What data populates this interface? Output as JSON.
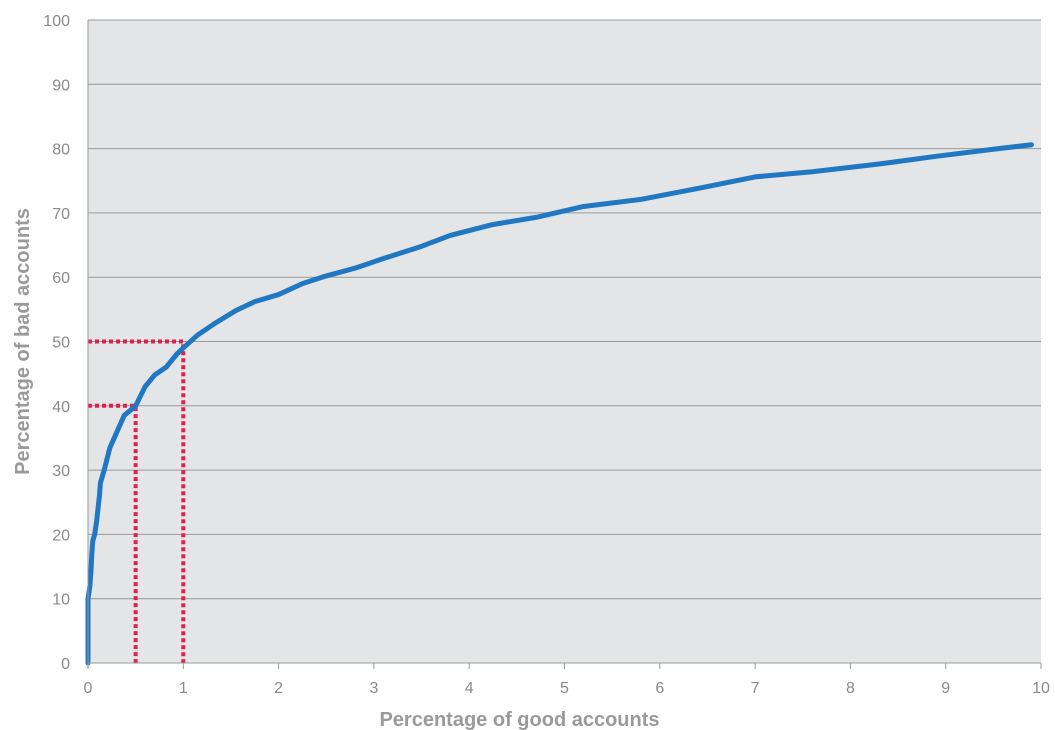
{
  "chart_data": {
    "type": "line",
    "title": "",
    "xlabel": "Percentage of good accounts",
    "ylabel": "Percentage of bad accounts",
    "xlim": [
      0,
      10
    ],
    "ylim": [
      0,
      100
    ],
    "x_ticks": [
      "0",
      "1",
      "2",
      "3",
      "4",
      "5",
      "6",
      "7",
      "8",
      "9",
      "10"
    ],
    "y_ticks": [
      "0",
      "10",
      "20",
      "30",
      "40",
      "50",
      "60",
      "70",
      "80",
      "90",
      "100"
    ],
    "grid": "horizontal",
    "legend": "none",
    "series": [
      {
        "color": "#1f78c1",
        "x": [
          0,
          0,
          0,
          0.02,
          0.03,
          0.04,
          0.05,
          0.07,
          0.09,
          0.12,
          0.13,
          0.17,
          0.23,
          0.38,
          0.5,
          0.6,
          0.7,
          0.82,
          0.93,
          1.0,
          1.15,
          1.35,
          1.55,
          1.75,
          2.0,
          2.25,
          2.5,
          2.8,
          3.1,
          3.5,
          3.8,
          4.25,
          4.7,
          5.2,
          5.8,
          6.4,
          7.0,
          7.6,
          8.3,
          8.9,
          9.5,
          9.9
        ],
        "y": [
          0,
          5,
          10,
          12,
          14,
          17,
          19,
          20,
          22,
          26,
          28,
          30,
          33.5,
          38.5,
          40,
          43,
          44.8,
          46,
          48,
          49,
          51,
          53,
          54.8,
          56.2,
          57.3,
          59,
          60.2,
          61.4,
          62.9,
          64.8,
          66.5,
          68.2,
          69.3,
          71,
          72.1,
          73.8,
          75.6,
          76.4,
          77.6,
          78.8,
          79.9,
          80.6
        ]
      }
    ],
    "reference_lines": [
      {
        "color": "#e0204a",
        "x": [
          0,
          0.5,
          0.5
        ],
        "y": [
          40,
          40,
          0
        ]
      },
      {
        "color": "#e0204a",
        "x": [
          0,
          1,
          1
        ],
        "y": [
          50,
          50,
          0
        ]
      }
    ]
  }
}
